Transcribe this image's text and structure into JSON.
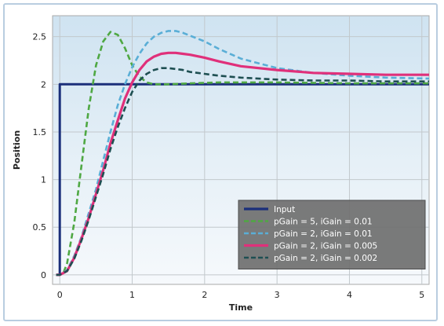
{
  "chart_data": {
    "type": "line",
    "title": "",
    "xlabel": "Time",
    "ylabel": "Position",
    "xlim": [
      -0.1,
      5.1
    ],
    "ylim": [
      -0.1,
      2.72
    ],
    "xticks": [
      0,
      1,
      2,
      3,
      4,
      5
    ],
    "yticks": [
      0,
      0.5,
      1,
      1.5,
      2,
      2.5
    ],
    "grid": true,
    "legend_position": "bottom-right",
    "series": [
      {
        "name": "Input",
        "color": "#1b2f7a",
        "style": "solid",
        "x": [
          -0.05,
          0,
          0,
          5.1
        ],
        "y": [
          0,
          0,
          2,
          2
        ]
      },
      {
        "name": "pGain = 5, iGain = 0.01",
        "color": "#4fa843",
        "style": "dashed",
        "x": [
          -0.05,
          0,
          0.05,
          0.1,
          0.2,
          0.3,
          0.4,
          0.5,
          0.6,
          0.7,
          0.8,
          0.9,
          1.0,
          1.1,
          1.2,
          1.3,
          1.5,
          1.8,
          2.2,
          3,
          4,
          5.1
        ],
        "y": [
          0,
          0,
          0.02,
          0.12,
          0.55,
          1.15,
          1.75,
          2.2,
          2.45,
          2.55,
          2.52,
          2.38,
          2.2,
          2.08,
          2.02,
          2.0,
          2.0,
          2.01,
          2.02,
          2.02,
          2.01,
          2.01
        ]
      },
      {
        "name": "pGain = 2, iGain = 0.01",
        "color": "#5aaed6",
        "style": "dashed",
        "x": [
          -0.05,
          0,
          0.1,
          0.2,
          0.3,
          0.4,
          0.5,
          0.6,
          0.7,
          0.8,
          0.9,
          1.0,
          1.1,
          1.2,
          1.3,
          1.4,
          1.5,
          1.6,
          1.7,
          1.8,
          2.0,
          2.2,
          2.5,
          3.0,
          3.5,
          4.0,
          4.5,
          5.1
        ],
        "y": [
          0,
          0,
          0.05,
          0.2,
          0.4,
          0.65,
          0.9,
          1.2,
          1.5,
          1.78,
          2.0,
          2.18,
          2.32,
          2.43,
          2.5,
          2.54,
          2.56,
          2.56,
          2.54,
          2.51,
          2.45,
          2.37,
          2.27,
          2.17,
          2.12,
          2.09,
          2.07,
          2.06
        ]
      },
      {
        "name": "pGain = 2, iGain = 0.005",
        "color": "#e0307a",
        "style": "solid",
        "x": [
          -0.05,
          0,
          0.1,
          0.2,
          0.3,
          0.4,
          0.5,
          0.6,
          0.7,
          0.8,
          0.9,
          1.0,
          1.1,
          1.2,
          1.3,
          1.4,
          1.5,
          1.6,
          1.7,
          1.8,
          2.0,
          2.2,
          2.5,
          3.0,
          3.5,
          4.0,
          4.5,
          5.1
        ],
        "y": [
          0,
          0,
          0.04,
          0.18,
          0.38,
          0.6,
          0.85,
          1.1,
          1.38,
          1.62,
          1.85,
          2.02,
          2.15,
          2.24,
          2.29,
          2.32,
          2.33,
          2.33,
          2.32,
          2.31,
          2.28,
          2.24,
          2.19,
          2.15,
          2.12,
          2.11,
          2.1,
          2.1
        ]
      },
      {
        "name": "pGain = 2, iGain = 0.002",
        "color": "#1e4f52",
        "style": "dashed",
        "x": [
          -0.05,
          0,
          0.1,
          0.2,
          0.3,
          0.4,
          0.5,
          0.6,
          0.7,
          0.8,
          0.9,
          1.0,
          1.1,
          1.2,
          1.3,
          1.4,
          1.5,
          1.6,
          1.7,
          1.8,
          2.0,
          2.2,
          2.5,
          3.0,
          3.5,
          4.0,
          4.5,
          5.1
        ],
        "y": [
          0,
          0,
          0.04,
          0.17,
          0.36,
          0.58,
          0.82,
          1.06,
          1.32,
          1.55,
          1.75,
          1.92,
          2.04,
          2.11,
          2.15,
          2.17,
          2.17,
          2.16,
          2.15,
          2.13,
          2.11,
          2.09,
          2.07,
          2.05,
          2.04,
          2.04,
          2.03,
          2.03
        ]
      }
    ]
  }
}
